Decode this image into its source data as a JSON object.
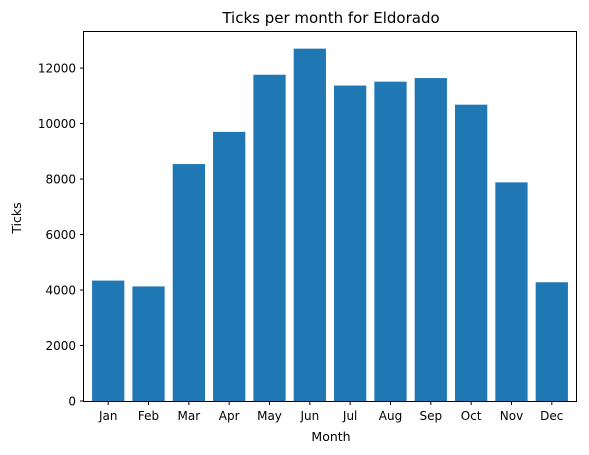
{
  "chart_data": {
    "type": "bar",
    "title": "Ticks per month for Eldorado",
    "xlabel": "Month",
    "ylabel": "Ticks",
    "categories": [
      "Jan",
      "Feb",
      "Mar",
      "Apr",
      "May",
      "Jun",
      "Jul",
      "Aug",
      "Sep",
      "Oct",
      "Nov",
      "Dec"
    ],
    "values": [
      4340,
      4130,
      8540,
      9700,
      11760,
      12700,
      11370,
      11510,
      11640,
      10680,
      7880,
      4280
    ],
    "ylim": [
      0,
      13300
    ],
    "yticks": [
      0,
      2000,
      4000,
      6000,
      8000,
      10000,
      12000
    ],
    "bar_color": "#1f77b4",
    "grid": false,
    "legend": "none"
  }
}
